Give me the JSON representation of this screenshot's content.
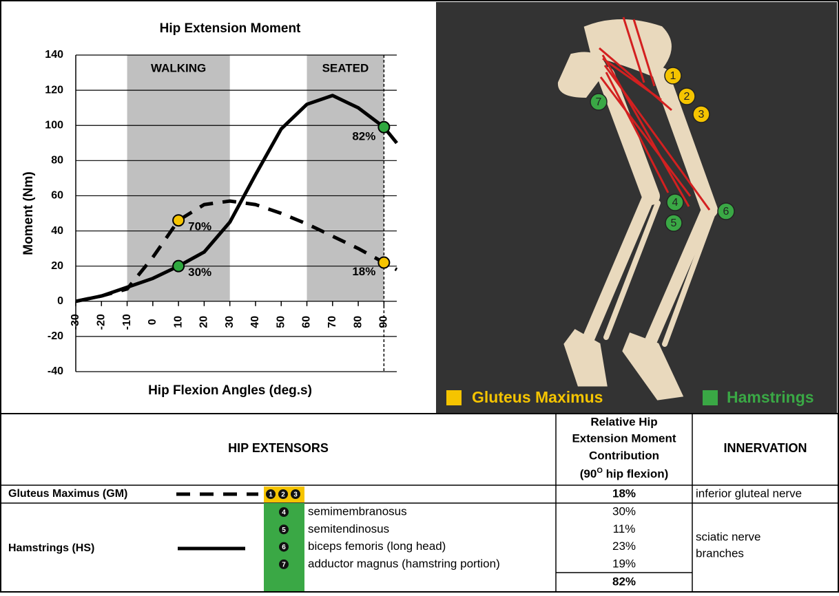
{
  "chart_data": {
    "type": "line",
    "title": "Hip Extension Moment",
    "x_label": "Hip Flexion Angles (deg.s)",
    "y_label": "Moment (Nm)",
    "x": [
      -30,
      -20,
      -10,
      0,
      10,
      20,
      30,
      40,
      50,
      60,
      70,
      80,
      90,
      95
    ],
    "series": [
      {
        "name": "Hamstrings (HS)",
        "color": "#000000",
        "line_style": "solid",
        "values": [
          0,
          3,
          8,
          13,
          20,
          28,
          45,
          72,
          98,
          112,
          117,
          110,
          99,
          90
        ]
      },
      {
        "name": "Gluteus Maximus (GM)",
        "color": "#000000",
        "line_style": "dashed",
        "values": [
          0,
          3,
          7,
          25,
          46,
          55,
          57,
          55,
          50,
          44,
          37,
          30,
          22,
          18
        ]
      }
    ],
    "xlim": [
      -30,
      95
    ],
    "ylim": [
      -40,
      140
    ],
    "xticks": [
      -30,
      -20,
      -10,
      0,
      10,
      20,
      30,
      40,
      50,
      60,
      70,
      80,
      90
    ],
    "yticks": [
      -40,
      -20,
      0,
      20,
      40,
      60,
      80,
      100,
      120,
      140
    ],
    "grid": true,
    "regions": [
      {
        "label": "WALKING",
        "from": -10,
        "to": 30
      },
      {
        "label": "SEATED",
        "from": 60,
        "to": 90
      }
    ],
    "region_color": "#c0c0c0",
    "reference_line_x": 90,
    "markers": [
      {
        "x": 10,
        "y": 46,
        "label": "70%",
        "color": "#f5c400"
      },
      {
        "x": 10,
        "y": 20,
        "label": "30%",
        "color": "#2fa83f"
      },
      {
        "x": 90,
        "y": 99,
        "label": "82%",
        "color": "#2fa83f"
      },
      {
        "x": 90,
        "y": 22,
        "label": "18%",
        "color": "#f5c400"
      }
    ]
  },
  "image": {
    "callouts": [
      {
        "label": "1",
        "color": "#f5c400"
      },
      {
        "label": "2",
        "color": "#f5c400"
      },
      {
        "label": "3",
        "color": "#f5c400"
      },
      {
        "label": "4",
        "color": "#3aa845"
      },
      {
        "label": "5",
        "color": "#3aa845"
      },
      {
        "label": "6",
        "color": "#3aa845"
      },
      {
        "label": "7",
        "color": "#3aa845"
      }
    ],
    "legend": [
      {
        "name": "Gluteus Maximus",
        "color": "#f5c400"
      },
      {
        "name": "Hamstrings",
        "color": "#3aa845"
      }
    ]
  },
  "table": {
    "headers": {
      "extensors": "HIP EXTENSORS",
      "contribution_lines": [
        "Relative Hip",
        "Extension Moment",
        "Contribution"
      ],
      "contribution_note": [
        "(90",
        "O",
        " hip flexion)"
      ],
      "innervation": "INNERVATION"
    },
    "gm": {
      "name": "Gluteus Maximus (GM)",
      "numbers": [
        "1",
        "2",
        "3"
      ],
      "contribution": "18%",
      "innervation": "inferior gluteal nerve"
    },
    "hs": {
      "name": "Hamstrings (HS)",
      "muscles": [
        {
          "number": "4",
          "name": "semimembranosus",
          "contribution": "30%"
        },
        {
          "number": "5",
          "name": "semitendinosus",
          "contribution": "11%"
        },
        {
          "number": "6",
          "name": "biceps femoris (long head)",
          "contribution": "23%"
        },
        {
          "number": "7",
          "name": "adductor magnus (hamstring portion)",
          "contribution": "19%"
        }
      ],
      "total": "82%",
      "innervation_lines": [
        "sciatic nerve",
        "branches"
      ]
    }
  }
}
